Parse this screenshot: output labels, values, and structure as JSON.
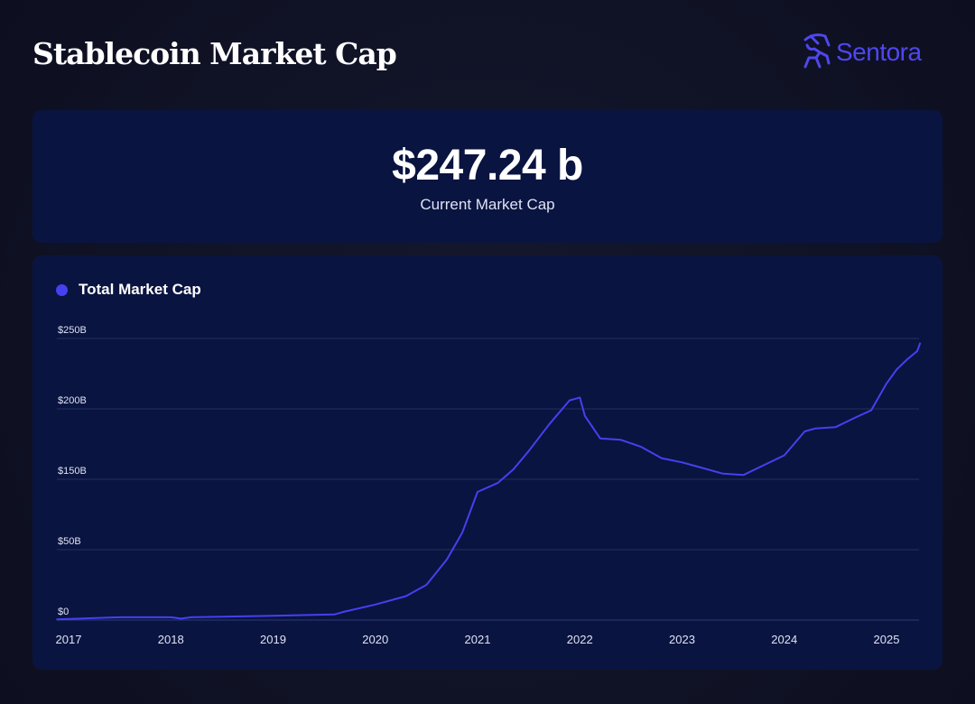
{
  "header": {
    "title": "Stablecoin Market Cap",
    "brand": "Sentora"
  },
  "kpi": {
    "value": "$247.24 b",
    "label": "Current Market Cap"
  },
  "colors": {
    "line": "#4540f0",
    "grid": "#22305e",
    "background": "#0f1124",
    "card": "#0a1440"
  },
  "icons": {
    "logo": "centaur-archer-icon"
  },
  "chart_data": {
    "type": "line",
    "title": "",
    "legend": {
      "position": "top-left",
      "entries": [
        "Total Market Cap"
      ]
    },
    "grid": true,
    "y_ticks": [
      {
        "value": 0,
        "label": "$0"
      },
      {
        "value": 50,
        "label": "$50B"
      },
      {
        "value": 150,
        "label": "$150B"
      },
      {
        "value": 200,
        "label": "$200B"
      },
      {
        "value": 250,
        "label": "$250B"
      }
    ],
    "x_ticks": [
      "2017",
      "2018",
      "2019",
      "2020",
      "2021",
      "2022",
      "2023",
      "2024",
      "2025"
    ],
    "xlim": [
      2016.88,
      2025.33
    ],
    "ylim": [
      0,
      250
    ],
    "series": [
      {
        "name": "Total Market Cap",
        "x": [
          2016.88,
          2017.5,
          2018.0,
          2018.1,
          2018.2,
          2019.0,
          2019.6,
          2019.7,
          2020.0,
          2020.3,
          2020.5,
          2020.7,
          2020.85,
          2021.0,
          2021.2,
          2021.35,
          2021.5,
          2021.7,
          2021.9,
          2022.0,
          2022.05,
          2022.2,
          2022.4,
          2022.6,
          2022.8,
          2023.0,
          2023.2,
          2023.4,
          2023.6,
          2023.8,
          2024.0,
          2024.2,
          2024.3,
          2024.5,
          2024.7,
          2024.85,
          2025.0,
          2025.1,
          2025.2,
          2025.3,
          2025.33
        ],
        "values": [
          0.5,
          2,
          2,
          1,
          2,
          3,
          4,
          6,
          11,
          17,
          25,
          43,
          74,
          132,
          145,
          157,
          170,
          189,
          206,
          208,
          195,
          179,
          178,
          173,
          165,
          162,
          158,
          154,
          153,
          160,
          167,
          184,
          186,
          187,
          194,
          199,
          218,
          228,
          235,
          241,
          247
        ]
      }
    ]
  }
}
